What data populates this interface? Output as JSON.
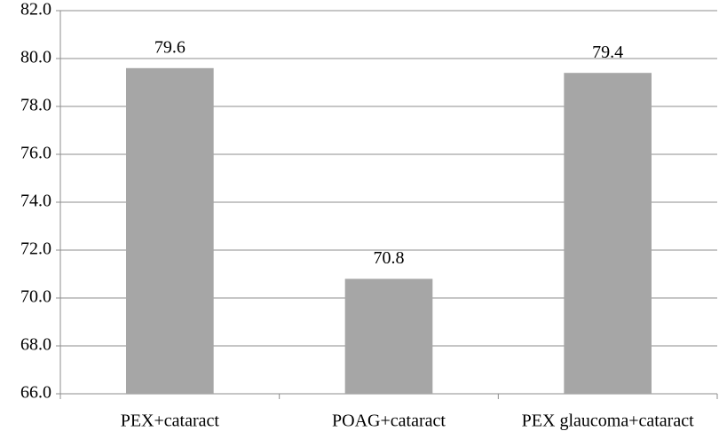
{
  "chart_data": {
    "type": "bar",
    "categories": [
      "PEX+cataract",
      "POAG+cataract",
      "PEX glaucoma+cataract"
    ],
    "values": [
      79.6,
      70.8,
      79.4
    ],
    "color": "#a6a6a6",
    "ylim": [
      66,
      82
    ],
    "yticks": [
      {
        "value": 66,
        "label": "66.0"
      },
      {
        "value": 68,
        "label": "68.0"
      },
      {
        "value": 70,
        "label": "70.0"
      },
      {
        "value": 72,
        "label": "72.0"
      },
      {
        "value": 74,
        "label": "74.0"
      },
      {
        "value": 76,
        "label": "76.0"
      },
      {
        "value": 78,
        "label": "78.0"
      },
      {
        "value": 80,
        "label": "80.0"
      },
      {
        "value": 82,
        "label": "82.0"
      }
    ],
    "grid": true
  }
}
